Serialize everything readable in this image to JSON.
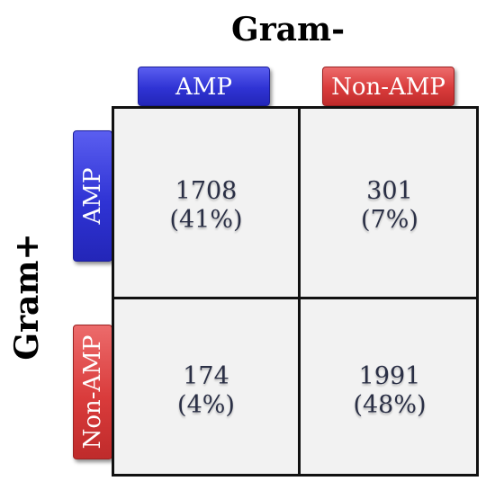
{
  "titles": {
    "top": "Gram-",
    "left": "Gram+"
  },
  "columns": [
    "AMP",
    "Non-AMP"
  ],
  "rows": [
    "AMP",
    "Non-AMP"
  ],
  "colors": {
    "amp": "#2f33d4",
    "non_amp": "#d93b3b",
    "cell_background": "#f2f2f2",
    "cell_text": "#2a2f45"
  },
  "cells": {
    "amp_amp": {
      "count": "1708",
      "percent": "(41%)"
    },
    "amp_nonamp": {
      "count": "301",
      "percent": "(7%)"
    },
    "nonamp_amp": {
      "count": "174",
      "percent": "(4%)"
    },
    "nonamp_nonamp": {
      "count": "1991",
      "percent": "(48%)"
    }
  }
}
